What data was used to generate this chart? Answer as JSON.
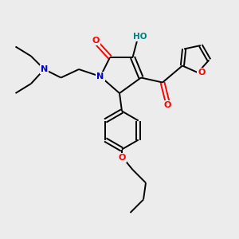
{
  "bg_color": "#ececec",
  "atom_colors": {
    "C": "#000000",
    "N": "#0000cc",
    "O": "#ff0000",
    "H": "#008080"
  },
  "bond_color": "#000000",
  "bond_width": 1.4
}
